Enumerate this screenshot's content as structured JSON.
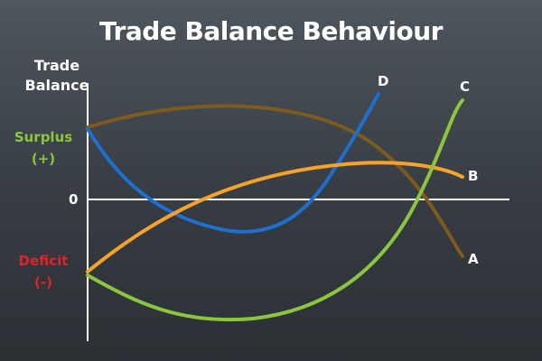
{
  "title": "Trade Balance Behaviour",
  "y_axis": {
    "label_line1": "Trade",
    "label_line2": "Balance",
    "surplus": {
      "line1": "Surplus",
      "line2": "(+)",
      "color": "#8cc63f"
    },
    "zero": "0",
    "deficit": {
      "line1": "Deficit",
      "line2": "(-)",
      "color": "#e0232b"
    }
  },
  "curves": [
    {
      "id": "A",
      "label": "A",
      "color": "#7d5a1e"
    },
    {
      "id": "B",
      "label": "B",
      "color": "#f7a22a"
    },
    {
      "id": "C",
      "label": "C",
      "color": "#8cc63f"
    },
    {
      "id": "D",
      "label": "D",
      "color": "#1f6fd1"
    }
  ],
  "colors": {
    "background_top": "#4e565e",
    "background_bottom": "#2b3035",
    "axis": "#ffffff",
    "text": "#ffffff"
  }
}
